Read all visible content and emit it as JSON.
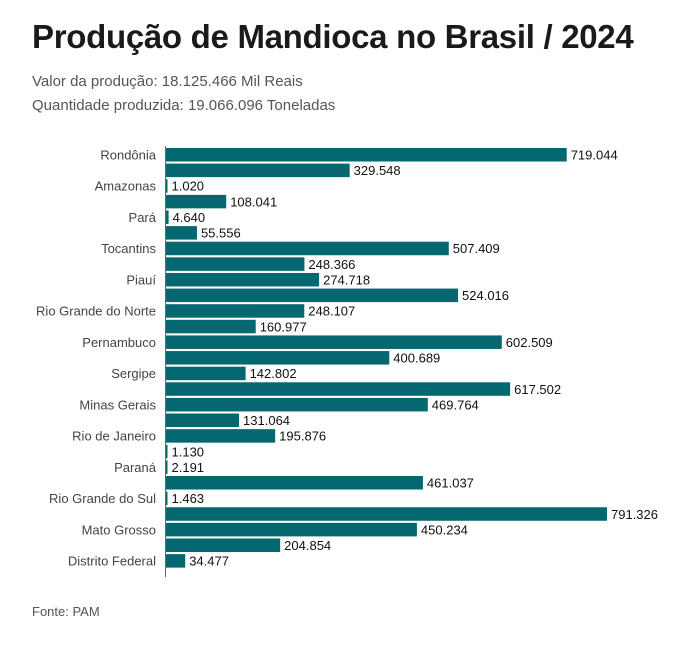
{
  "title": "Produção de Mandioca no Brasil / 2024",
  "subtitle_1": "Valor da produção: 18.125.466 Mil Reais",
  "subtitle_2": "Quantidade produzida: 19.066.096 Toneladas",
  "source": "Fonte: PAM",
  "chart_data": {
    "type": "bar",
    "orientation": "horizontal",
    "bar_color": "#05676f",
    "grid": false,
    "categories": [
      "Rondônia",
      "",
      "Amazonas",
      "",
      "Pará",
      "",
      "Tocantins",
      "",
      "Piauí",
      "",
      "Rio Grande do Norte",
      "",
      "Pernambuco",
      "",
      "Sergipe",
      "",
      "Minas Gerais",
      "",
      "Rio de Janeiro",
      "",
      "Paraná",
      "",
      "Rio Grande do Sul",
      "",
      "Mato Grosso",
      "",
      "Distrito Federal"
    ],
    "values": [
      719.044,
      329.548,
      1.02,
      108.041,
      4.64,
      55.556,
      507.409,
      248.366,
      274.718,
      524.016,
      248.107,
      160.977,
      602.509,
      400.689,
      142.802,
      617.502,
      469.764,
      131.064,
      195.876,
      1.13,
      2.191,
      461.037,
      1.463,
      791.326,
      450.234,
      204.854,
      34.477
    ],
    "value_labels": [
      "719.044",
      "329.548",
      "1.020",
      "108.041",
      "4.640",
      "55.556",
      "507.409",
      "248.366",
      "274.718",
      "524.016",
      "248.107",
      "160.977",
      "602.509",
      "400.689",
      "142.802",
      "617.502",
      "469.764",
      "131.064",
      "195.876",
      "1.130",
      "2.191",
      "461.037",
      "1.463",
      "791.326",
      "450.234",
      "204.854",
      "34.477"
    ]
  }
}
